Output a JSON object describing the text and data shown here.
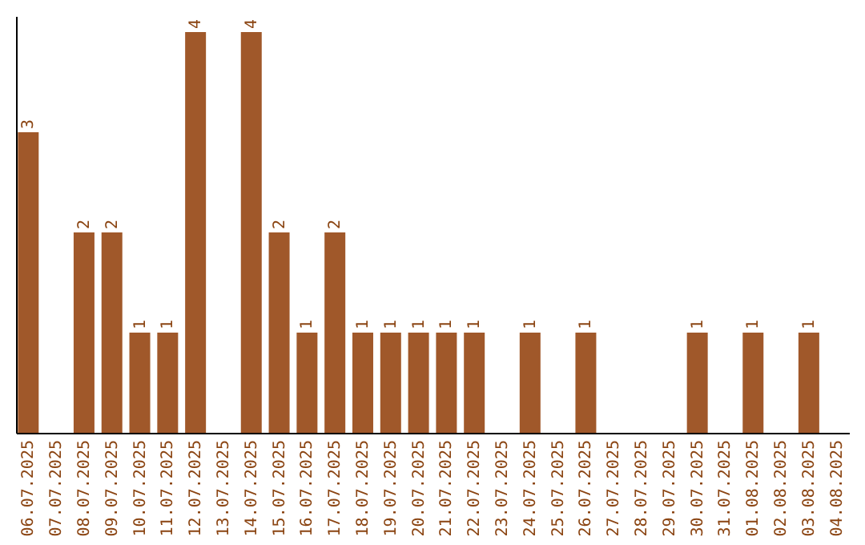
{
  "chart_data": {
    "type": "bar",
    "categories": [
      "06.07.2025",
      "07.07.2025",
      "08.07.2025",
      "09.07.2025",
      "10.07.2025",
      "11.07.2025",
      "12.07.2025",
      "13.07.2025",
      "14.07.2025",
      "15.07.2025",
      "16.07.2025",
      "17.07.2025",
      "18.07.2025",
      "19.07.2025",
      "20.07.2025",
      "21.07.2025",
      "22.07.2025",
      "23.07.2025",
      "24.07.2025",
      "25.07.2025",
      "26.07.2025",
      "27.07.2025",
      "28.07.2025",
      "29.07.2025",
      "30.07.2025",
      "31.07.2025",
      "01.08.2025",
      "02.08.2025",
      "03.08.2025",
      "04.08.2025"
    ],
    "values": [
      3,
      0,
      2,
      2,
      1,
      1,
      4,
      0,
      4,
      2,
      1,
      2,
      1,
      1,
      1,
      1,
      1,
      0,
      1,
      0,
      1,
      0,
      0,
      0,
      1,
      0,
      1,
      0,
      1,
      0
    ],
    "value_labels": [
      "3",
      null,
      "2",
      "2",
      "1",
      "1",
      "4",
      null,
      "4",
      "2",
      "1",
      "2",
      "1",
      "1",
      "1",
      "1",
      "1",
      null,
      "1",
      null,
      "1",
      null,
      null,
      null,
      "1",
      null,
      "1",
      null,
      "1",
      null
    ],
    "color": "#a0582a",
    "tick_labels": "x",
    "grid": false
  }
}
